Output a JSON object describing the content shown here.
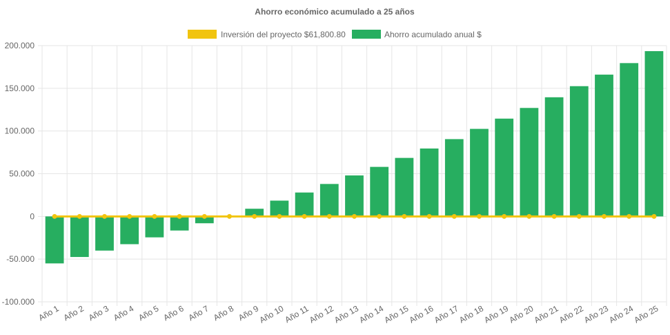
{
  "chart_data": {
    "type": "bar",
    "title": "Ahorro económico acumulado a 25 años",
    "xlabel": "",
    "ylabel": "",
    "categories": [
      "Año 1",
      "Año 2",
      "Año 3",
      "Año 4",
      "Año 5",
      "Año 6",
      "Año 7",
      "Año 8",
      "Año 9",
      "Año 10",
      "Año 11",
      "Año 12",
      "Año 13",
      "Año 14",
      "Año 15",
      "Año 16",
      "Año 17",
      "Año 18",
      "Año 19",
      "Año 20",
      "Año 21",
      "Año 22",
      "Año 23",
      "Año 24",
      "Año 25"
    ],
    "ylim": [
      -100000,
      200000
    ],
    "yticks": [
      200000,
      150000,
      100000,
      50000,
      0,
      -50000,
      -100000
    ],
    "ytick_labels": [
      "200.000",
      "150.000",
      "100.000",
      "50.000",
      "0",
      "-50.000",
      "-100.000"
    ],
    "grid": true,
    "legend_position": "top",
    "series": [
      {
        "name": "Inversión del proyecto $61,800.80",
        "type": "line",
        "color": "#f1c40f",
        "values": [
          0,
          0,
          0,
          0,
          0,
          0,
          0,
          0,
          0,
          0,
          0,
          0,
          0,
          0,
          0,
          0,
          0,
          0,
          0,
          0,
          0,
          0,
          0,
          0,
          0
        ]
      },
      {
        "name": "Ahorro acumulado anual $",
        "type": "bar",
        "color": "#27ae60",
        "values": [
          -55000,
          -47500,
          -40000,
          -32500,
          -24500,
          -16500,
          -8000,
          0,
          9000,
          18500,
          28000,
          38000,
          48000,
          58000,
          68500,
          79500,
          90500,
          102500,
          114500,
          127000,
          139500,
          152500,
          166000,
          179500,
          193500
        ]
      }
    ]
  }
}
